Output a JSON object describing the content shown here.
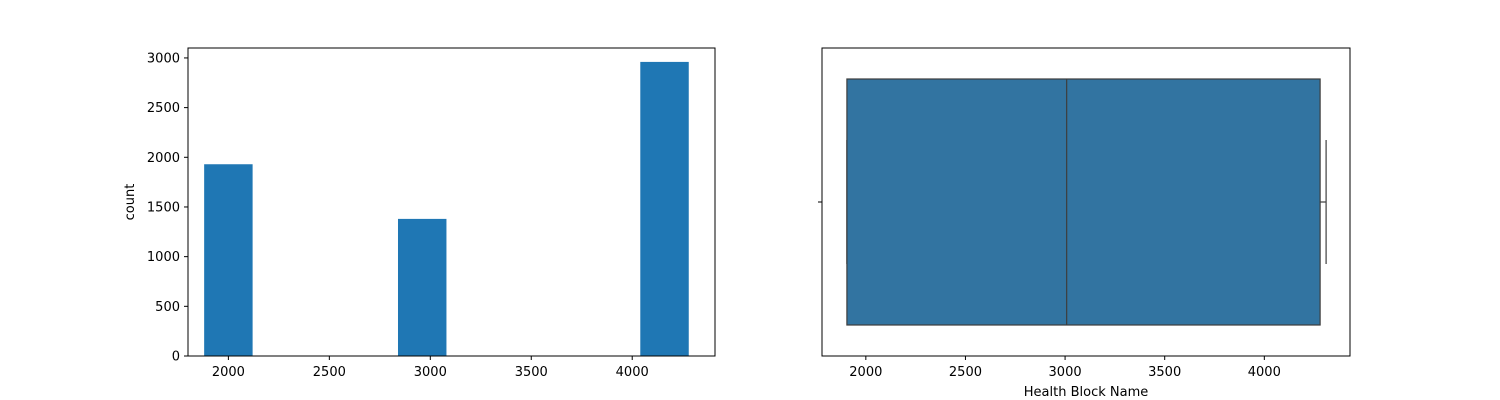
{
  "chart_data": [
    {
      "type": "bar",
      "subtype": "histogram",
      "title": "",
      "xlabel": "",
      "ylabel": "count",
      "xlim": [
        1800,
        4410
      ],
      "ylim": [
        0,
        3100
      ],
      "xticks": [
        2000,
        2500,
        3000,
        3500,
        4000
      ],
      "yticks": [
        0,
        500,
        1000,
        1500,
        2000,
        2500,
        3000
      ],
      "bin_width": 240,
      "bars": [
        {
          "x0": 1880,
          "x1": 2120,
          "value": 1930
        },
        {
          "x0": 2120,
          "x1": 2360,
          "value": 0
        },
        {
          "x0": 2360,
          "x1": 2600,
          "value": 0
        },
        {
          "x0": 2600,
          "x1": 2840,
          "value": 0
        },
        {
          "x0": 2840,
          "x1": 3080,
          "value": 1380
        },
        {
          "x0": 3080,
          "x1": 3320,
          "value": 0
        },
        {
          "x0": 3320,
          "x1": 3560,
          "value": 0
        },
        {
          "x0": 3560,
          "x1": 3800,
          "value": 0
        },
        {
          "x0": 3800,
          "x1": 4040,
          "value": 0
        },
        {
          "x0": 4040,
          "x1": 4280,
          "value": 2960
        }
      ],
      "color": "#1f77b4",
      "grid": false
    },
    {
      "type": "box",
      "title": "",
      "xlabel": "Health Block Name",
      "ylabel": "",
      "xlim": [
        1780,
        4430
      ],
      "xticks": [
        2000,
        2500,
        3000,
        3500,
        4000
      ],
      "whisker_low": 1905,
      "q1": 1905,
      "median": 3008,
      "q3": 4280,
      "whisker_high": 4310,
      "color": "#3274a1",
      "edge_color": "#3d3d3d",
      "grid": false
    }
  ]
}
